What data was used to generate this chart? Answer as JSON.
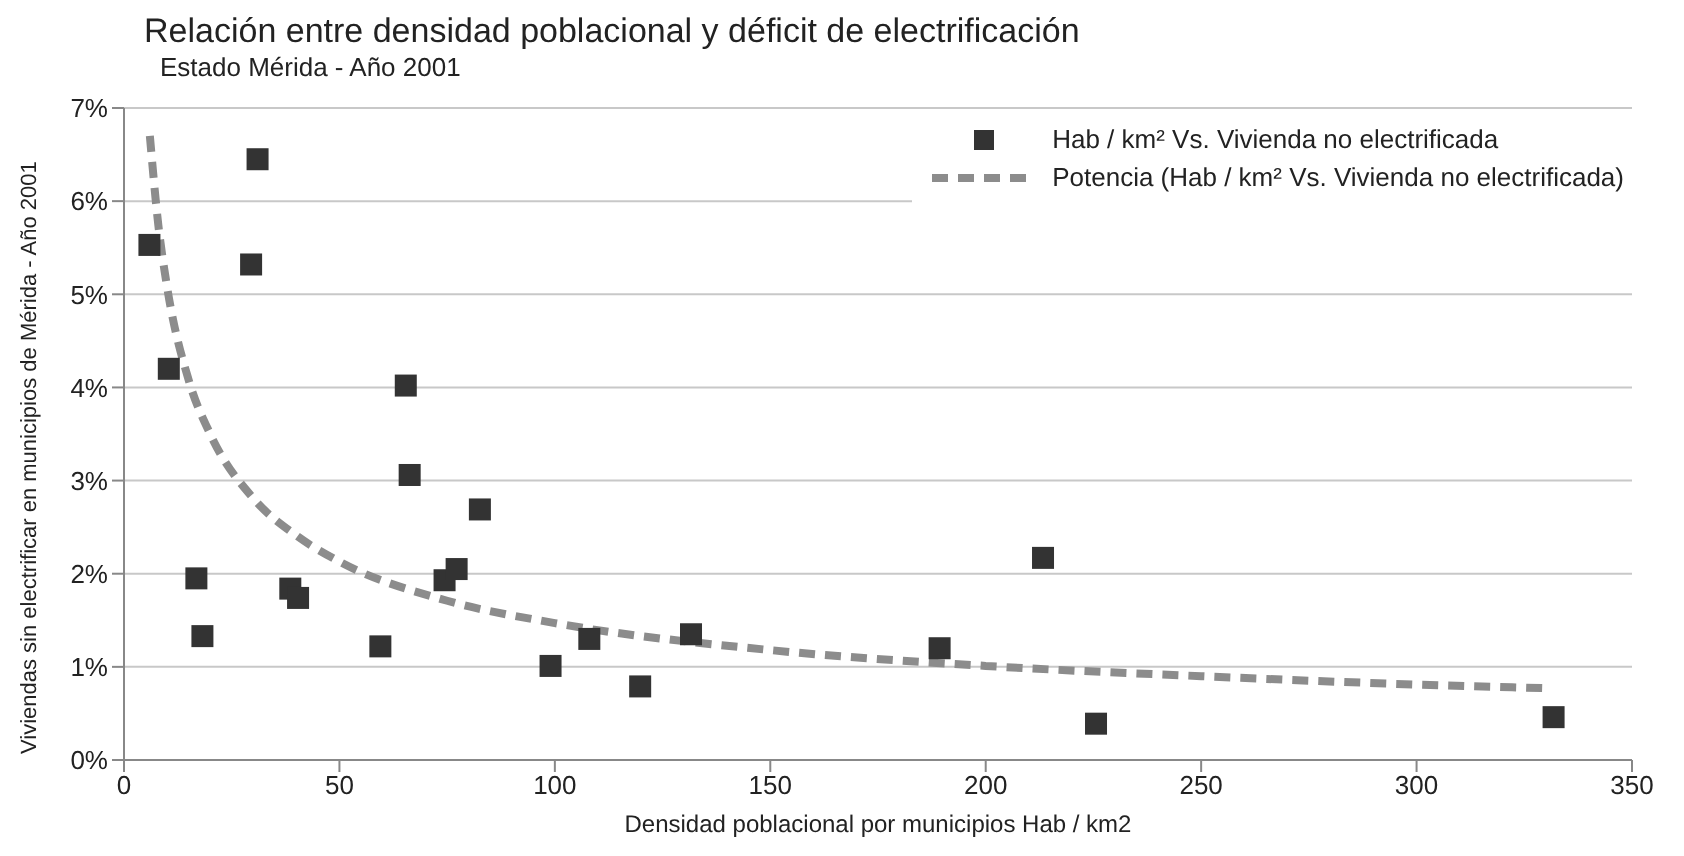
{
  "chart_data": {
    "type": "scatter",
    "title": "Relación entre densidad poblacional y déficit de electrificación",
    "subtitle": "Estado Mérida - Año 2001",
    "xlabel": "Densidad poblacional por municipios Hab / km2",
    "ylabel": "Viviendas sin electrificar en municipios de Mérida - Año 2001",
    "series": [
      {
        "name": "Hab / km² Vs. Vivienda no electrificada",
        "marker": "square",
        "color": "#333333",
        "x": [
          5.9,
          10.4,
          16.8,
          18.2,
          29.5,
          31,
          38.6,
          40.4,
          59.5,
          65.4,
          66.3,
          74.4,
          77.2,
          82.6,
          99,
          108,
          119.8,
          131.6,
          189.3,
          213.3,
          225.6,
          331.8
        ],
        "values": [
          5.53,
          4.2,
          1.95,
          1.33,
          5.32,
          6.45,
          1.84,
          1.74,
          1.22,
          4.02,
          3.06,
          1.93,
          2.05,
          2.69,
          1.01,
          1.3,
          0.79,
          1.35,
          1.2,
          2.17,
          0.39,
          0.46
        ]
      },
      {
        "name": "Potencia (Hab / km² Vs. Vivienda no electrificada)",
        "type": "line",
        "line_style": "dashed",
        "color": "#8c8c8c",
        "x": [
          6,
          8,
          10,
          15,
          20,
          30,
          40,
          50,
          75,
          100,
          150,
          200,
          250,
          300,
          331
        ],
        "values": [
          6.7,
          5.73,
          5.08,
          4.08,
          3.5,
          2.81,
          2.41,
          2.13,
          1.71,
          1.47,
          1.18,
          1.01,
          0.9,
          0.81,
          0.77
        ]
      }
    ],
    "xlim": [
      0,
      350
    ],
    "xticks": [
      0,
      50,
      100,
      150,
      200,
      250,
      300,
      350
    ],
    "ylim": [
      0,
      7
    ],
    "yticks": [
      {
        "value": 0,
        "label": "0%"
      },
      {
        "value": 1,
        "label": "1%"
      },
      {
        "value": 2,
        "label": "2%"
      },
      {
        "value": 3,
        "label": "3%"
      },
      {
        "value": 4,
        "label": "4%"
      },
      {
        "value": 5,
        "label": "5%"
      },
      {
        "value": 6,
        "label": "6%"
      },
      {
        "value": 7,
        "label": "7%"
      }
    ],
    "grid": "y",
    "legend": "top right"
  }
}
